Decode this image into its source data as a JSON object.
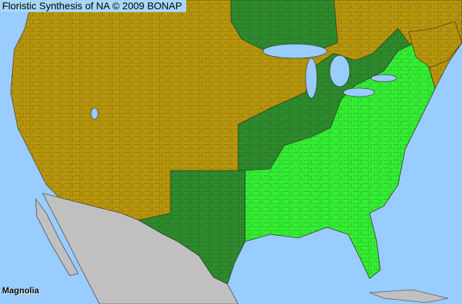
{
  "header": {
    "title": "Floristic Synthesis of NA © 2009 BONAP"
  },
  "map": {
    "taxon_label": "Magnolia",
    "colors": {
      "water": "#99ccff",
      "present_in_state": "#2d8b2d",
      "present_in_county": "#33ee33",
      "absent": "#b8960c",
      "outside_range": "#c0c0c0",
      "county_lines": "#3a3a20"
    }
  }
}
